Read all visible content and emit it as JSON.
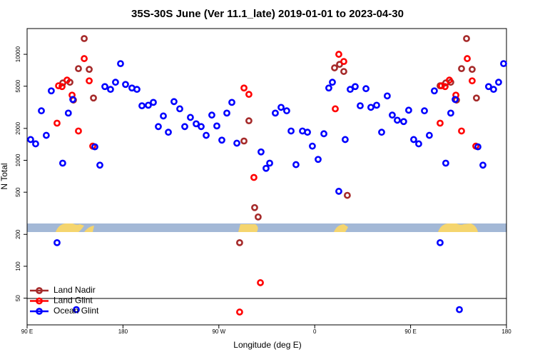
{
  "chart_data": {
    "type": "scatter",
    "title": "35S-30S June (Ver 11.1_late)   2019-01-01 to 2023-04-30",
    "x_label": "Longitude (deg E)",
    "y_label": "N Total",
    "ylog": true,
    "xlim": [
      90,
      540
    ],
    "ylim": [
      28,
      17500
    ],
    "xticks": [
      {
        "value": 90,
        "label": "90 E"
      },
      180,
      {
        "value": 270,
        "label": "90 W"
      },
      {
        "value": 360,
        "label": "0"
      },
      {
        "value": 450,
        "label": "90 E"
      },
      {
        "value": 540,
        "label": "180"
      }
    ],
    "yticks": [
      50,
      100,
      200,
      500,
      1000,
      2000,
      5000,
      10000
    ],
    "legend": "bottom-left",
    "series": [
      {
        "name": "Land Nadir",
        "color": "#a52a2a",
        "x": [
          123.5,
          130.2,
          133.5,
          138.2,
          143.6,
          148.3,
          152.3,
          289.5,
          293.6,
          298.2,
          303.6,
          306.9,
          378.6,
          383.3,
          387.3,
          390.6,
          477.7,
          483.0,
          487.7,
          493.1,
          497.8,
          502.5,
          507.8,
          511.8
        ],
        "values": [
          5370,
          5450,
          3700,
          7330,
          14080,
          7210,
          3870,
          167,
          1520,
          2360,
          358,
          292,
          7450,
          8040,
          6890,
          467,
          5050,
          5370,
          5450,
          3700,
          7330,
          14080,
          7210,
          3870
        ]
      },
      {
        "name": "Land Glint",
        "color": "#ff0000",
        "x": [
          118.1,
          119.5,
          122.8,
          127.5,
          132.2,
          138.2,
          143.6,
          148.3,
          151.6,
          289.5,
          293.6,
          298.2,
          302.9,
          309.0,
          379.3,
          382.6,
          387.3,
          477.7,
          479.0,
          482.4,
          486.4,
          492.5,
          497.8,
          503.2,
          507.8,
          511.2
        ],
        "values": [
          2240,
          5050,
          4960,
          5710,
          4120,
          1890,
          9110,
          5620,
          1360,
          37,
          4810,
          4190,
          689,
          70,
          3060,
          10000,
          8560,
          2240,
          5050,
          4960,
          5710,
          4120,
          1890,
          9110,
          5620,
          1360
        ]
      },
      {
        "name": "Ocean Glint",
        "color": "#0000ff",
        "x": [
          93.3,
          98.0,
          103.4,
          108.0,
          112.7,
          118.1,
          123.4,
          128.7,
          132.9,
          136.2,
          153.6,
          158.3,
          163.0,
          168.3,
          173.0,
          177.7,
          182.4,
          188.4,
          193.1,
          197.8,
          203.8,
          208.5,
          213.2,
          217.9,
          222.6,
          227.9,
          233.3,
          238.0,
          243.3,
          248.7,
          253.4,
          258.1,
          263.4,
          268.1,
          272.8,
          277.5,
          282.2,
          286.9,
          309.6,
          314.3,
          317.7,
          323.0,
          328.4,
          333.7,
          337.8,
          342.4,
          348.5,
          353.2,
          357.8,
          363.2,
          368.6,
          373.2,
          376.6,
          382.6,
          388.6,
          393.3,
          398.0,
          402.7,
          408.1,
          412.7,
          418.1,
          422.8,
          428.1,
          432.8,
          437.5,
          443.5,
          448.2,
          452.9,
          457.6,
          463.0,
          467.6,
          472.3,
          477.7,
          483.0,
          487.7,
          491.8,
          495.8,
          513.2,
          517.9,
          523.2,
          527.9,
          532.6,
          537.3
        ],
        "values": [
          1570,
          1430,
          2930,
          1720,
          4520,
          167,
          940,
          2790,
          3750,
          39,
          1340,
          900,
          4960,
          4670,
          5450,
          8170,
          5200,
          4810,
          4670,
          3270,
          3310,
          3520,
          2080,
          2620,
          1840,
          3580,
          3060,
          2080,
          2540,
          2210,
          2080,
          1720,
          2670,
          2110,
          1550,
          2790,
          3520,
          1450,
          1200,
          840,
          940,
          2790,
          3160,
          2930,
          1890,
          910,
          1890,
          1840,
          1360,
          1020,
          1780,
          4810,
          5450,
          510,
          1570,
          4670,
          4960,
          3270,
          4740,
          3160,
          3310,
          1840,
          4050,
          2670,
          2390,
          2320,
          2970,
          1570,
          1430,
          2930,
          1720,
          4520,
          167,
          940,
          2790,
          3750,
          39,
          1340,
          900,
          4960,
          4670,
          5450,
          8170
        ]
      }
    ]
  }
}
